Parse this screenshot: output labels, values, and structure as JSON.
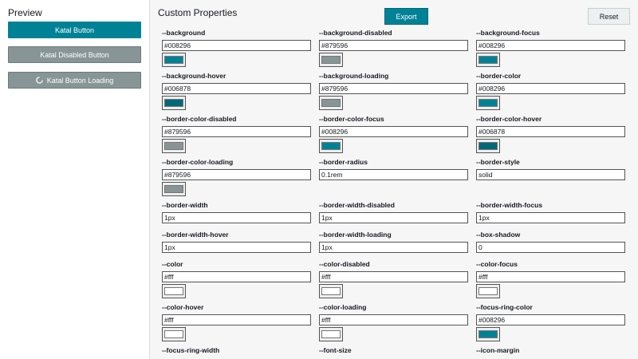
{
  "preview": {
    "title": "Preview",
    "buttons": [
      "Katal Button",
      "Katal Disabled Button",
      "Katal Button Loading"
    ]
  },
  "editor": {
    "title": "Custom Properties",
    "export": "Export",
    "reset": "Reset",
    "properties": [
      {
        "name": "--background",
        "value": "#008296"
      },
      {
        "name": "--background-disabled",
        "value": "#879596"
      },
      {
        "name": "--background-focus",
        "value": "#008296"
      },
      {
        "name": "--background-hover",
        "value": "#006878"
      },
      {
        "name": "--background-loading",
        "value": "#879596"
      },
      {
        "name": "--border-color",
        "value": "#008296"
      },
      {
        "name": "--border-color-disabled",
        "value": "#879596"
      },
      {
        "name": "--border-color-focus",
        "value": "#008296"
      },
      {
        "name": "--border-color-hover",
        "value": "#006878"
      },
      {
        "name": "--border-color-loading",
        "value": "#879596"
      },
      {
        "name": "--border-radius",
        "value": "0.1rem"
      },
      {
        "name": "--border-style",
        "value": "solid"
      },
      {
        "name": "--border-width",
        "value": "1px"
      },
      {
        "name": "--border-width-disabled",
        "value": "1px"
      },
      {
        "name": "--border-width-focus",
        "value": "1px"
      },
      {
        "name": "--border-width-hover",
        "value": "1px"
      },
      {
        "name": "--border-width-loading",
        "value": "1px"
      },
      {
        "name": "--box-shadow",
        "value": "0"
      },
      {
        "name": "--color",
        "value": "#fff"
      },
      {
        "name": "--color-disabled",
        "value": "#fff"
      },
      {
        "name": "--color-focus",
        "value": "#fff"
      },
      {
        "name": "--color-hover",
        "value": "#fff"
      },
      {
        "name": "--color-loading",
        "value": "#fff"
      },
      {
        "name": "--focus-ring-color",
        "value": "#008296"
      },
      {
        "name": "--focus-ring-width"
      },
      {
        "name": "--font-size"
      },
      {
        "name": "--icon-margin"
      }
    ]
  }
}
